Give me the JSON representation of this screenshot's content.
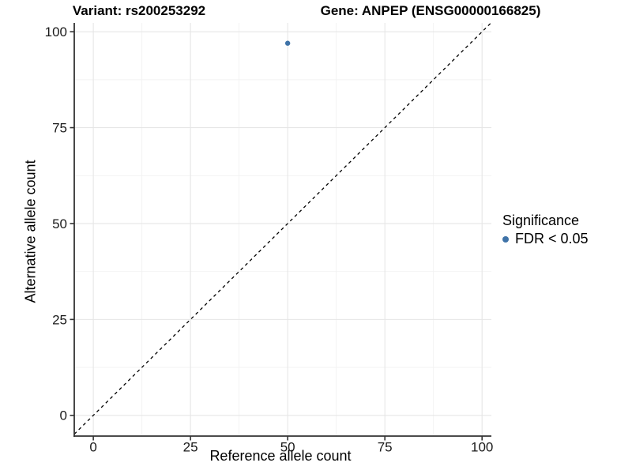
{
  "chart_data": {
    "type": "scatter",
    "title_left": "Variant: rs200253292",
    "title_right": "Gene: ANPEP (ENSG00000166825)",
    "xlabel": "Reference allele count",
    "ylabel": "Alternative allele count",
    "xlim": [
      -4.9,
      102.4
    ],
    "ylim": [
      -5.4,
      102.3
    ],
    "xticks": [
      0,
      25,
      50,
      75,
      100
    ],
    "yticks": [
      0,
      25,
      50,
      75,
      100
    ],
    "xminor_ticks": [
      12.5,
      37.5,
      62.5,
      87.5
    ],
    "yminor_ticks": [
      12.5,
      37.5,
      62.5,
      87.5
    ],
    "grid": "on",
    "points": [
      {
        "x": 50,
        "y": 97,
        "series": "FDR < 0.05"
      }
    ],
    "reference_line": {
      "slope": 1,
      "intercept": 0,
      "linetype": "dashed",
      "color": "#000000"
    },
    "colors": {
      "point": "#3f73a8",
      "grid_major": "#e6e6e6",
      "grid_minor": "#f2f2f2",
      "axis": "#333333",
      "tick_label": "#1a1a1a"
    },
    "legend": {
      "title": "Significance",
      "position": "right",
      "items": [
        {
          "label": "FDR < 0.05",
          "color": "#3f73a8"
        }
      ]
    }
  }
}
